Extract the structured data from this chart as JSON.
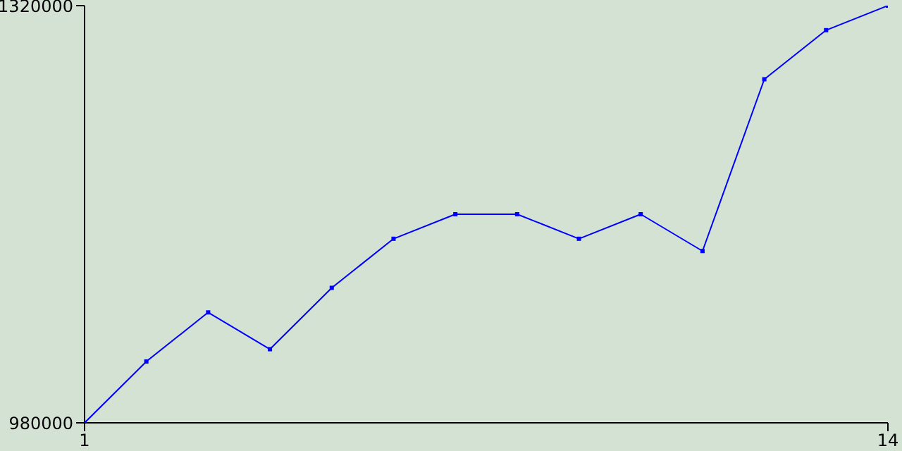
{
  "chart_data": {
    "type": "line",
    "x": [
      1,
      2,
      3,
      4,
      5,
      6,
      7,
      8,
      9,
      10,
      11,
      12,
      13,
      14
    ],
    "series": [
      {
        "color": "#0000ff",
        "values": [
          980000,
          1030000,
          1070000,
          1040000,
          1090000,
          1130000,
          1150000,
          1150000,
          1130000,
          1150000,
          1120000,
          1260000,
          1300000,
          1320000
        ]
      }
    ],
    "xlim": [
      1,
      14
    ],
    "xticks": [
      1,
      14
    ],
    "ylim": [
      980000,
      1320000
    ],
    "yticks": [
      980000,
      1320000
    ],
    "grid": false,
    "legend": false,
    "marker": "square",
    "line_style": "solid"
  }
}
